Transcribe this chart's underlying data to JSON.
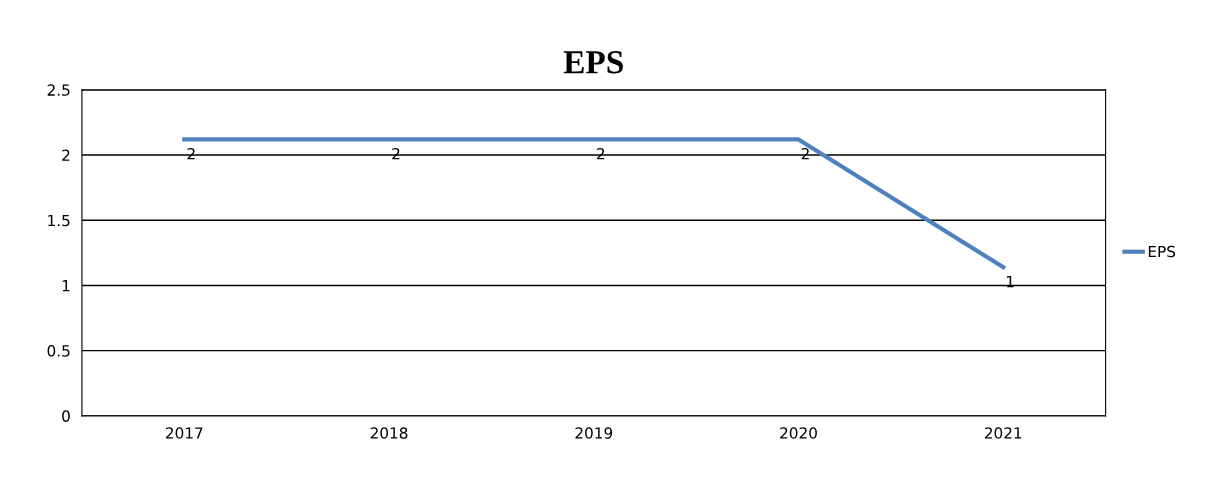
{
  "chart_data": {
    "type": "line",
    "title": "EPS",
    "categories": [
      "2017",
      "2018",
      "2019",
      "2020",
      "2021"
    ],
    "series": [
      {
        "name": "EPS",
        "color": "#4f81bd",
        "values": [
          2.12,
          2.12,
          2.12,
          2.12,
          1.14
        ],
        "value_labels": [
          "2",
          "2",
          "2",
          "2",
          "1"
        ]
      }
    ],
    "ylim": [
      0,
      2.5
    ],
    "yticks": [
      0,
      0.5,
      1,
      1.5,
      2,
      2.5
    ],
    "grid": "y",
    "legend": "right",
    "marker": "none",
    "line_style": "solid"
  }
}
